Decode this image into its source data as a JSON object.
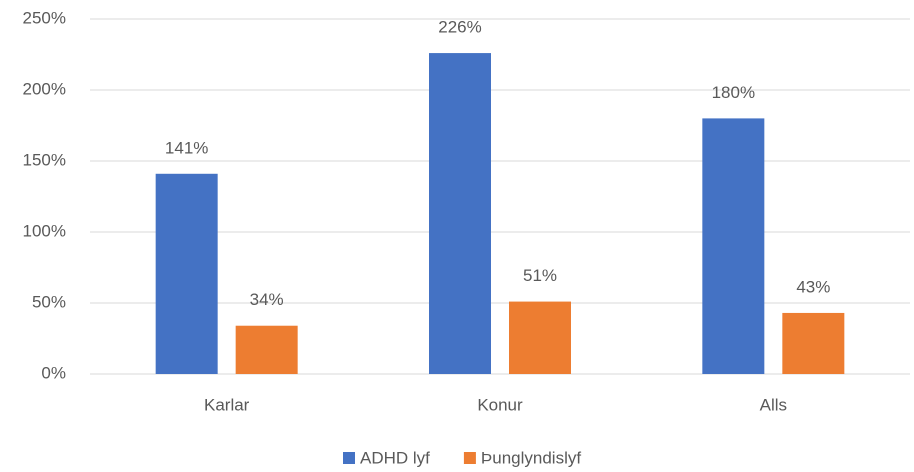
{
  "chart_data": {
    "type": "bar",
    "categories": [
      "Karlar",
      "Konur",
      "Alls"
    ],
    "series": [
      {
        "name": "ADHD lyf",
        "color": "#4472c4",
        "values": [
          141,
          226,
          180
        ],
        "value_labels": [
          "141%",
          "226%",
          "180%"
        ]
      },
      {
        "name": "Þunglyndislyf",
        "color": "#ed7d31",
        "values": [
          34,
          51,
          43
        ],
        "value_labels": [
          "34%",
          "51%",
          "43%"
        ]
      }
    ],
    "ylim": [
      0,
      250
    ],
    "yticks": [
      {
        "value": 0,
        "label": "0%"
      },
      {
        "value": 50,
        "label": "50%"
      },
      {
        "value": 100,
        "label": "100%"
      },
      {
        "value": 150,
        "label": "150%"
      },
      {
        "value": 200,
        "label": "200%"
      },
      {
        "value": 250,
        "label": "250%"
      }
    ],
    "grid": true,
    "legend": "bottom"
  }
}
